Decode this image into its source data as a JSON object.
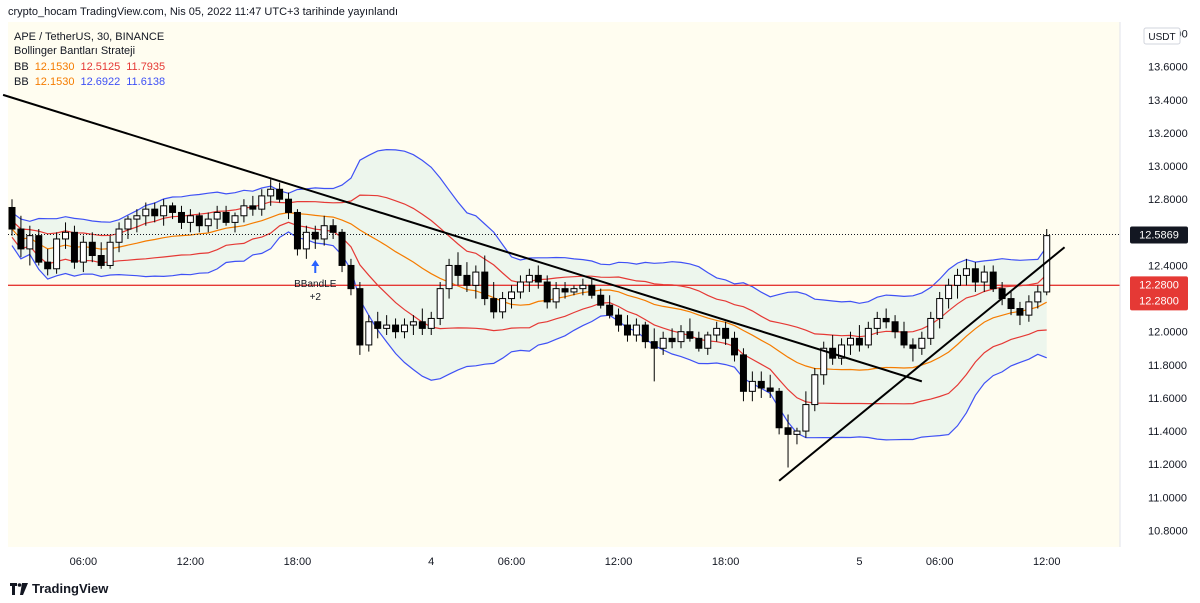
{
  "header": {
    "text": "crypto_hocam TradingView.com, Nis 05, 2022 11:47 UTC+3 tarihinde yayınlandı"
  },
  "legend": {
    "title": "APE / TetherUS, 30, BINANCE",
    "strategy": "Bollinger Bantları Strateji",
    "bb1": {
      "label": "BB",
      "mid": "12.1530",
      "upper": "12.5125",
      "lower": "11.7935"
    },
    "bb2": {
      "label": "BB",
      "mid": "12.1530",
      "upper": "12.6922",
      "lower": "11.6138"
    }
  },
  "footer": {
    "brand": "TradingView"
  },
  "colors": {
    "bg": "#fffdf0",
    "candle_up": "#ffffff",
    "candle_down": "#000000",
    "bb_mid": "#f57c00",
    "bb_inner": "#e53935",
    "bb_outer": "#3f51f5",
    "band_fill": "#e8f4ec",
    "hline": "#e53935",
    "trendline": "#000000",
    "price_label_bg": "#131722",
    "level_label_bg": "#e53935",
    "signal": "#2962ff"
  },
  "chart_data": {
    "type": "candlestick",
    "symbol": "APE / TetherUS",
    "timeframe": "30",
    "exchange": "BINANCE",
    "currency": "USDT",
    "ylim": [
      10.7,
      13.87
    ],
    "y_ticks": [
      "10.8000",
      "11.0000",
      "11.2000",
      "11.4000",
      "11.6000",
      "11.8000",
      "12.0000",
      "12.2000",
      "12.4000",
      "12.6000",
      "12.8000",
      "13.0000",
      "13.2000",
      "13.4000",
      "13.6000",
      "13.8000"
    ],
    "x_ticks": [
      "06:00",
      "12:00",
      "18:00",
      "4",
      "06:00",
      "12:00",
      "18:00",
      "5",
      "06:00",
      "12:00"
    ],
    "x_tick_index": [
      8,
      20,
      32,
      47,
      56,
      68,
      80,
      95,
      104,
      116
    ],
    "current_price": "12.5869",
    "horizontal_level": "12.2800",
    "signal": {
      "label": "BBandLE",
      "qty": "+2",
      "index": 34
    },
    "trendlines": [
      {
        "from": [
          -1,
          13.43
        ],
        "to": [
          102,
          11.7
        ]
      },
      {
        "from": [
          86,
          11.1
        ],
        "to": [
          118,
          12.51
        ]
      }
    ],
    "candles": [
      [
        12.75,
        12.8,
        12.58,
        12.62
      ],
      [
        12.62,
        12.7,
        12.45,
        12.5
      ],
      [
        12.5,
        12.64,
        12.4,
        12.58
      ],
      [
        12.58,
        12.62,
        12.4,
        12.42
      ],
      [
        12.42,
        12.5,
        12.34,
        12.38
      ],
      [
        12.38,
        12.6,
        12.35,
        12.56
      ],
      [
        12.56,
        12.66,
        12.5,
        12.6
      ],
      [
        12.6,
        12.64,
        12.38,
        12.42
      ],
      [
        12.42,
        12.58,
        12.36,
        12.54
      ],
      [
        12.54,
        12.6,
        12.42,
        12.46
      ],
      [
        12.46,
        12.54,
        12.38,
        12.4
      ],
      [
        12.4,
        12.58,
        12.38,
        12.54
      ],
      [
        12.54,
        12.66,
        12.48,
        12.62
      ],
      [
        12.62,
        12.7,
        12.56,
        12.68
      ],
      [
        12.68,
        12.74,
        12.6,
        12.7
      ],
      [
        12.7,
        12.78,
        12.64,
        12.74
      ],
      [
        12.74,
        12.78,
        12.66,
        12.7
      ],
      [
        12.7,
        12.8,
        12.64,
        12.76
      ],
      [
        12.76,
        12.78,
        12.68,
        12.72
      ],
      [
        12.72,
        12.76,
        12.62,
        12.66
      ],
      [
        12.66,
        12.74,
        12.6,
        12.7
      ],
      [
        12.7,
        12.72,
        12.6,
        12.64
      ],
      [
        12.64,
        12.72,
        12.6,
        12.68
      ],
      [
        12.68,
        12.76,
        12.62,
        12.72
      ],
      [
        12.72,
        12.76,
        12.64,
        12.66
      ],
      [
        12.66,
        12.72,
        12.6,
        12.7
      ],
      [
        12.7,
        12.8,
        12.66,
        12.76
      ],
      [
        12.76,
        12.82,
        12.7,
        12.74
      ],
      [
        12.74,
        12.86,
        12.7,
        12.82
      ],
      [
        12.82,
        12.92,
        12.76,
        12.86
      ],
      [
        12.86,
        12.9,
        12.78,
        12.8
      ],
      [
        12.8,
        12.84,
        12.68,
        12.72
      ],
      [
        12.72,
        12.74,
        12.46,
        12.5
      ],
      [
        12.5,
        12.64,
        12.44,
        12.6
      ],
      [
        12.6,
        12.64,
        12.5,
        12.56
      ],
      [
        12.56,
        12.7,
        12.52,
        12.64
      ],
      [
        12.64,
        12.68,
        12.56,
        12.6
      ],
      [
        12.6,
        12.62,
        12.36,
        12.4
      ],
      [
        12.4,
        12.44,
        12.22,
        12.26
      ],
      [
        12.26,
        12.3,
        11.86,
        11.92
      ],
      [
        11.92,
        12.1,
        11.88,
        12.06
      ],
      [
        12.06,
        12.12,
        11.96,
        12.02
      ],
      [
        12.02,
        12.1,
        11.98,
        12.04
      ],
      [
        12.04,
        12.08,
        11.96,
        12.0
      ],
      [
        12.0,
        12.08,
        11.96,
        12.04
      ],
      [
        12.04,
        12.1,
        11.98,
        12.06
      ],
      [
        12.06,
        12.14,
        11.98,
        12.02
      ],
      [
        12.02,
        12.12,
        11.98,
        12.08
      ],
      [
        12.08,
        12.3,
        12.04,
        12.26
      ],
      [
        12.26,
        12.44,
        12.2,
        12.4
      ],
      [
        12.4,
        12.48,
        12.28,
        12.34
      ],
      [
        12.34,
        12.42,
        12.24,
        12.28
      ],
      [
        12.28,
        12.4,
        12.2,
        12.36
      ],
      [
        12.36,
        12.46,
        12.16,
        12.2
      ],
      [
        12.2,
        12.3,
        12.08,
        12.12
      ],
      [
        12.12,
        12.24,
        12.08,
        12.2
      ],
      [
        12.2,
        12.28,
        12.14,
        12.24
      ],
      [
        12.24,
        12.34,
        12.2,
        12.3
      ],
      [
        12.3,
        12.38,
        12.24,
        12.34
      ],
      [
        12.34,
        12.4,
        12.26,
        12.3
      ],
      [
        12.3,
        12.34,
        12.14,
        12.18
      ],
      [
        12.18,
        12.3,
        12.14,
        12.26
      ],
      [
        12.26,
        12.3,
        12.2,
        12.24
      ],
      [
        12.24,
        12.28,
        12.22,
        12.26
      ],
      [
        12.26,
        12.32,
        12.22,
        12.28
      ],
      [
        12.28,
        12.32,
        12.2,
        12.22
      ],
      [
        12.22,
        12.26,
        12.14,
        12.16
      ],
      [
        12.16,
        12.22,
        12.08,
        12.1
      ],
      [
        12.1,
        12.14,
        12.0,
        12.04
      ],
      [
        12.04,
        12.1,
        11.94,
        11.98
      ],
      [
        11.98,
        12.08,
        11.94,
        12.04
      ],
      [
        12.04,
        12.06,
        11.9,
        11.94
      ],
      [
        11.94,
        12.02,
        11.7,
        11.9
      ],
      [
        11.9,
        12.0,
        11.86,
        11.96
      ],
      [
        11.96,
        12.02,
        11.9,
        11.94
      ],
      [
        11.94,
        12.04,
        11.9,
        12.0
      ],
      [
        12.0,
        12.08,
        11.94,
        11.96
      ],
      [
        11.96,
        12.0,
        11.88,
        11.9
      ],
      [
        11.9,
        12.0,
        11.86,
        11.98
      ],
      [
        11.98,
        12.06,
        11.94,
        12.02
      ],
      [
        12.02,
        12.06,
        11.92,
        11.96
      ],
      [
        11.96,
        12.0,
        11.82,
        11.86
      ],
      [
        11.86,
        11.9,
        11.58,
        11.64
      ],
      [
        11.64,
        11.76,
        11.58,
        11.7
      ],
      [
        11.7,
        11.76,
        11.6,
        11.66
      ],
      [
        11.66,
        11.74,
        11.6,
        11.64
      ],
      [
        11.64,
        11.66,
        11.38,
        11.42
      ],
      [
        11.42,
        11.5,
        11.18,
        11.38
      ],
      [
        11.38,
        11.42,
        11.32,
        11.4
      ],
      [
        11.4,
        11.64,
        11.36,
        11.56
      ],
      [
        11.56,
        11.78,
        11.52,
        11.74
      ],
      [
        11.74,
        11.94,
        11.68,
        11.9
      ],
      [
        11.9,
        11.98,
        11.8,
        11.84
      ],
      [
        11.84,
        11.96,
        11.8,
        11.92
      ],
      [
        11.92,
        12.0,
        11.86,
        11.96
      ],
      [
        11.96,
        12.04,
        11.88,
        11.92
      ],
      [
        11.92,
        12.06,
        11.9,
        12.02
      ],
      [
        12.02,
        12.12,
        11.98,
        12.08
      ],
      [
        12.08,
        12.14,
        12.02,
        12.06
      ],
      [
        12.06,
        12.1,
        11.96,
        12.0
      ],
      [
        12.0,
        12.06,
        11.9,
        11.92
      ],
      [
        11.92,
        11.96,
        11.82,
        11.9
      ],
      [
        11.9,
        12.0,
        11.86,
        11.96
      ],
      [
        11.96,
        12.12,
        11.92,
        12.08
      ],
      [
        12.08,
        12.24,
        12.02,
        12.2
      ],
      [
        12.2,
        12.32,
        12.14,
        12.28
      ],
      [
        12.28,
        12.38,
        12.2,
        12.34
      ],
      [
        12.34,
        12.44,
        12.28,
        12.38
      ],
      [
        12.38,
        12.42,
        12.24,
        12.3
      ],
      [
        12.3,
        12.4,
        12.24,
        12.36
      ],
      [
        12.36,
        12.4,
        12.24,
        12.26
      ],
      [
        12.26,
        12.3,
        12.16,
        12.2
      ],
      [
        12.2,
        12.24,
        12.1,
        12.14
      ],
      [
        12.14,
        12.18,
        12.04,
        12.1
      ],
      [
        12.1,
        12.22,
        12.06,
        12.18
      ],
      [
        12.18,
        12.28,
        12.14,
        12.24
      ],
      [
        12.24,
        12.62,
        12.22,
        12.58
      ]
    ]
  }
}
